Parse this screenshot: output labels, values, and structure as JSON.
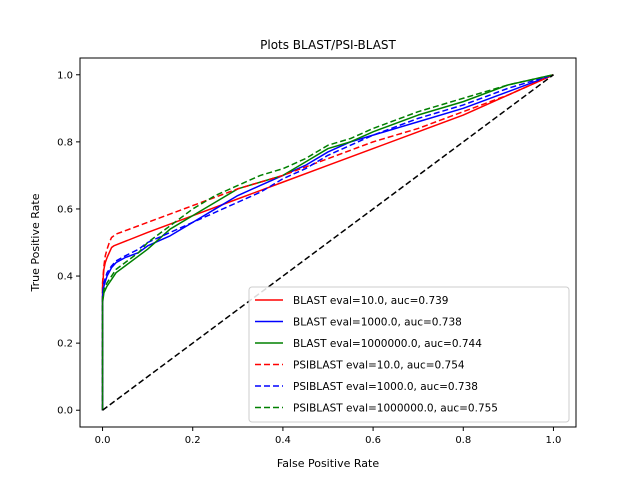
{
  "chart_data": {
    "type": "line",
    "title": "Plots BLAST/PSI-BLAST",
    "xlabel": "False Positive Rate",
    "ylabel": "True Positive Rate",
    "xlim": [
      -0.05,
      1.05
    ],
    "ylim": [
      -0.05,
      1.05
    ],
    "xticks": [
      "0.0",
      "0.2",
      "0.4",
      "0.6",
      "0.8",
      "1.0"
    ],
    "yticks": [
      "0.0",
      "0.2",
      "0.4",
      "0.6",
      "0.8",
      "1.0"
    ],
    "grid": false,
    "legend_position": "lower-right",
    "series": [
      {
        "name": "BLAST eval=10.0, auc=0.739",
        "color": "#ff0000",
        "dash": "solid",
        "x": [
          0,
          0,
          0.003,
          0.006,
          0.01,
          0.015,
          0.02,
          0.025,
          0.1,
          0.2,
          0.3,
          0.4,
          0.5,
          0.6,
          0.7,
          0.8,
          0.9,
          1.0
        ],
        "y": [
          0,
          0.37,
          0.42,
          0.44,
          0.455,
          0.47,
          0.485,
          0.49,
          0.53,
          0.58,
          0.63,
          0.68,
          0.73,
          0.78,
          0.83,
          0.88,
          0.94,
          1.0
        ]
      },
      {
        "name": "BLAST eval=1000.0, auc=0.738",
        "color": "#0000ff",
        "dash": "solid",
        "x": [
          0,
          0,
          0.003,
          0.01,
          0.02,
          0.03,
          0.05,
          0.08,
          0.1,
          0.15,
          0.2,
          0.25,
          0.3,
          0.35,
          0.4,
          0.45,
          0.5,
          0.55,
          0.6,
          0.7,
          0.8,
          0.9,
          1.0
        ],
        "y": [
          0,
          0.34,
          0.37,
          0.4,
          0.425,
          0.44,
          0.455,
          0.47,
          0.49,
          0.52,
          0.56,
          0.6,
          0.64,
          0.67,
          0.7,
          0.73,
          0.77,
          0.8,
          0.82,
          0.86,
          0.9,
          0.95,
          1.0
        ]
      },
      {
        "name": "BLAST eval=1000000.0, auc=0.744",
        "color": "#008000",
        "dash": "solid",
        "x": [
          0,
          0,
          0.003,
          0.01,
          0.02,
          0.03,
          0.05,
          0.08,
          0.1,
          0.15,
          0.2,
          0.25,
          0.3,
          0.35,
          0.4,
          0.45,
          0.5,
          0.55,
          0.6,
          0.7,
          0.8,
          0.9,
          1.0
        ],
        "y": [
          0,
          0.32,
          0.35,
          0.37,
          0.39,
          0.41,
          0.43,
          0.46,
          0.48,
          0.54,
          0.58,
          0.62,
          0.66,
          0.68,
          0.7,
          0.74,
          0.78,
          0.8,
          0.83,
          0.88,
          0.92,
          0.97,
          1.0
        ]
      },
      {
        "name": "PSIBLAST eval=10.0, auc=0.754",
        "color": "#ff0000",
        "dash": "dashed",
        "x": [
          0,
          0,
          0.003,
          0.006,
          0.01,
          0.015,
          0.02,
          0.03,
          0.1,
          0.2,
          0.3,
          0.4,
          0.5,
          0.6,
          0.7,
          0.8,
          0.9,
          1.0
        ],
        "y": [
          0,
          0.38,
          0.43,
          0.46,
          0.48,
          0.5,
          0.515,
          0.525,
          0.56,
          0.61,
          0.66,
          0.7,
          0.75,
          0.8,
          0.84,
          0.89,
          0.94,
          1.0
        ]
      },
      {
        "name": "PSIBLAST eval=1000.0, auc=0.738",
        "color": "#0000ff",
        "dash": "dashed",
        "x": [
          0,
          0,
          0.003,
          0.01,
          0.02,
          0.03,
          0.05,
          0.08,
          0.1,
          0.15,
          0.2,
          0.25,
          0.3,
          0.35,
          0.4,
          0.45,
          0.5,
          0.55,
          0.6,
          0.7,
          0.8,
          0.9,
          1.0
        ],
        "y": [
          0,
          0.35,
          0.38,
          0.41,
          0.43,
          0.445,
          0.46,
          0.48,
          0.5,
          0.53,
          0.56,
          0.59,
          0.62,
          0.65,
          0.69,
          0.72,
          0.76,
          0.79,
          0.82,
          0.87,
          0.91,
          0.96,
          1.0
        ]
      },
      {
        "name": "PSIBLAST eval=1000000.0, auc=0.755",
        "color": "#008000",
        "dash": "dashed",
        "x": [
          0,
          0,
          0.003,
          0.01,
          0.02,
          0.03,
          0.05,
          0.08,
          0.1,
          0.15,
          0.2,
          0.25,
          0.3,
          0.35,
          0.4,
          0.45,
          0.5,
          0.55,
          0.6,
          0.7,
          0.8,
          0.9,
          1.0
        ],
        "y": [
          0,
          0.33,
          0.36,
          0.38,
          0.4,
          0.42,
          0.44,
          0.47,
          0.5,
          0.55,
          0.6,
          0.64,
          0.67,
          0.7,
          0.72,
          0.75,
          0.79,
          0.81,
          0.84,
          0.89,
          0.93,
          0.97,
          1.0
        ]
      }
    ],
    "reference_line": {
      "color": "#000000",
      "dash": "dashed",
      "x": [
        0,
        1
      ],
      "y": [
        0,
        1
      ]
    }
  }
}
